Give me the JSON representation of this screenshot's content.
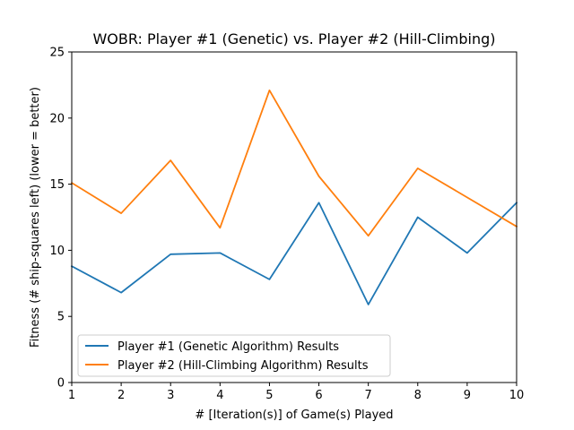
{
  "chart_data": {
    "type": "line",
    "title": "WOBR: Player #1 (Genetic) vs. Player #2 (Hill-Climbing)",
    "xlabel": "# [Iteration(s)] of Game(s) Played",
    "ylabel": "Fitness (# ship-squares left) (lower = better)",
    "x": [
      1,
      2,
      3,
      4,
      5,
      6,
      7,
      8,
      9,
      10
    ],
    "xlim": [
      1,
      10
    ],
    "ylim": [
      0,
      25
    ],
    "xticks": [
      "1",
      "2",
      "3",
      "4",
      "5",
      "6",
      "7",
      "8",
      "9",
      "10"
    ],
    "yticks": [
      "0",
      "5",
      "10",
      "15",
      "20",
      "25"
    ],
    "grid": false,
    "legend_position": "lower-left",
    "series": [
      {
        "name": "Player #1 (Genetic Algorithm) Results",
        "color": "#1f77b4",
        "values": [
          8.8,
          6.8,
          9.7,
          9.8,
          7.8,
          13.6,
          5.9,
          12.5,
          9.8,
          13.6
        ]
      },
      {
        "name": "Player #2 (Hill-Climbing Algorithm) Results",
        "color": "#ff7f0e",
        "values": [
          15.1,
          12.8,
          16.8,
          11.7,
          22.1,
          15.6,
          11.1,
          16.2,
          14.0,
          11.8
        ]
      }
    ]
  }
}
